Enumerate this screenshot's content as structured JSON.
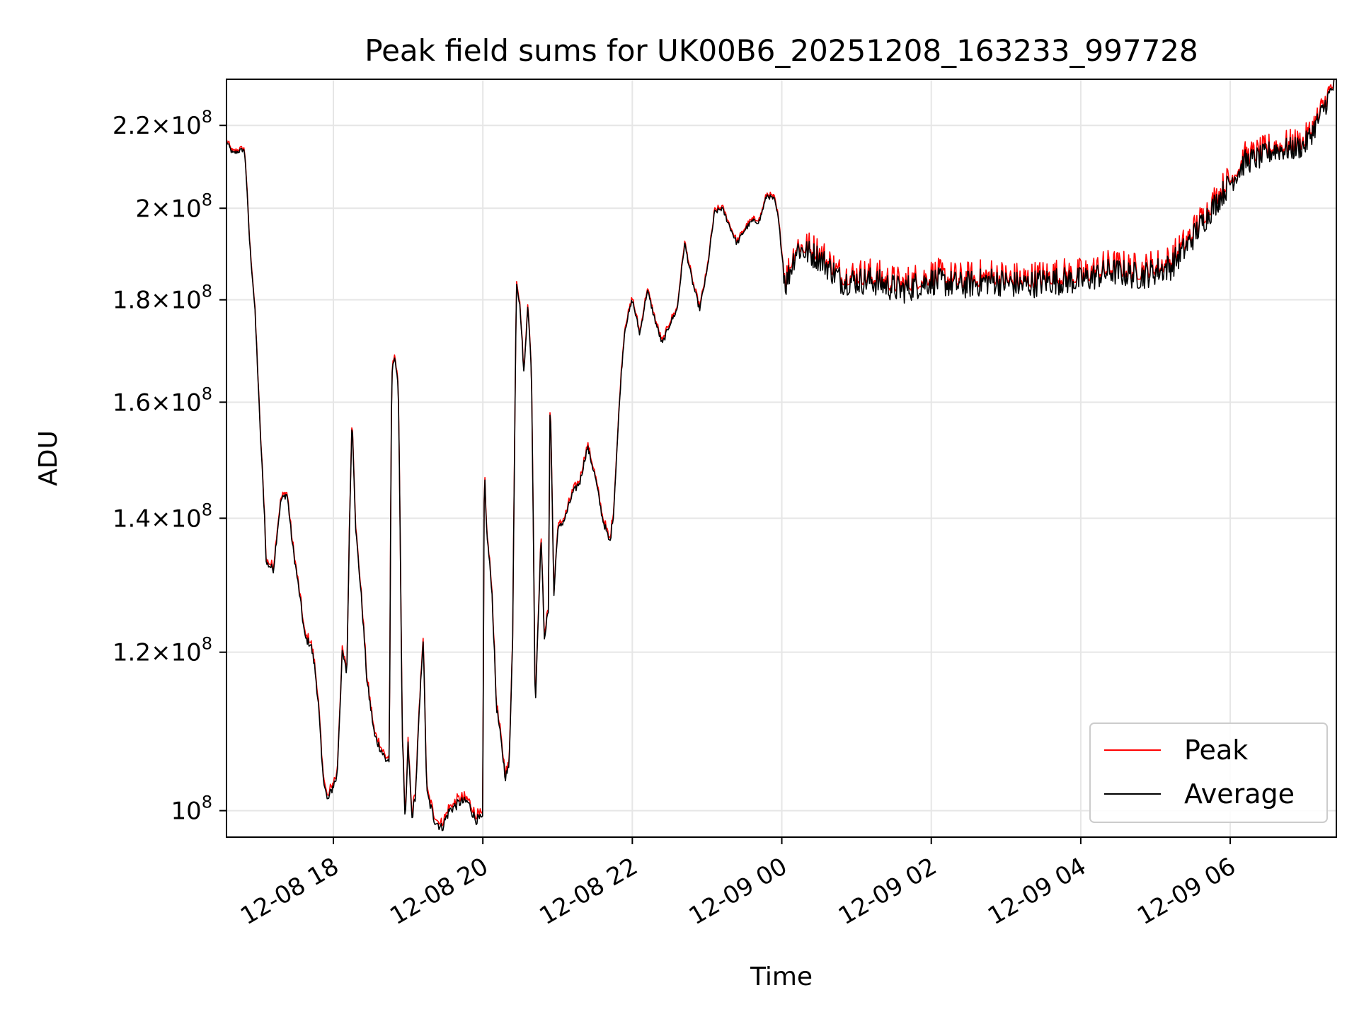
{
  "chart_data": {
    "type": "line",
    "title": "Peak field sums for UK00B6_20251208_163233_997728",
    "xlabel": "Time",
    "ylabel": "ADU",
    "yscale": "log",
    "grid": true,
    "legend_position": "lower-right",
    "x_range_hours": [
      -1.43,
      13.42
    ],
    "ylim": [
      97000000,
      232000000
    ],
    "x_ticks": [
      {
        "hour": 0,
        "label": "12-08 18"
      },
      {
        "hour": 2,
        "label": "12-08 20"
      },
      {
        "hour": 4,
        "label": "12-08 22"
      },
      {
        "hour": 6,
        "label": "12-09 00"
      },
      {
        "hour": 8,
        "label": "12-09 02"
      },
      {
        "hour": 10,
        "label": "12-09 04"
      },
      {
        "hour": 12,
        "label": "12-09 06"
      }
    ],
    "y_ticks": [
      {
        "value": 100000000,
        "mantissa": "",
        "exp": "8"
      },
      {
        "value": 120000000,
        "mantissa": "1.2",
        "exp": "8"
      },
      {
        "value": 140000000,
        "mantissa": "1.4",
        "exp": "8"
      },
      {
        "value": 160000000,
        "mantissa": "1.6",
        "exp": "8"
      },
      {
        "value": 180000000,
        "mantissa": "1.8",
        "exp": "8"
      },
      {
        "value": 200000000,
        "mantissa": "2",
        "exp": "8"
      },
      {
        "value": 220000000,
        "mantissa": "2.2",
        "exp": "8"
      }
    ],
    "series": [
      {
        "name": "Peak",
        "color": "#ff0000",
        "noise_offset": 1.2
      },
      {
        "name": "Average",
        "color": "#000000",
        "noise_offset": 0
      }
    ],
    "average_keypoints": [
      [
        -1.43,
        2.16
      ],
      [
        -1.35,
        2.13
      ],
      [
        -1.2,
        2.14
      ],
      [
        -1.18,
        2.12
      ],
      [
        -1.12,
        1.92
      ],
      [
        -1.05,
        1.78
      ],
      [
        -0.98,
        1.55
      ],
      [
        -0.92,
        1.4
      ],
      [
        -0.9,
        1.33
      ],
      [
        -0.8,
        1.32
      ],
      [
        -0.75,
        1.38
      ],
      [
        -0.7,
        1.43
      ],
      [
        -0.62,
        1.44
      ],
      [
        -0.55,
        1.36
      ],
      [
        -0.45,
        1.28
      ],
      [
        -0.38,
        1.22
      ],
      [
        -0.3,
        1.21
      ],
      [
        -0.25,
        1.18
      ],
      [
        -0.2,
        1.13
      ],
      [
        -0.15,
        1.05
      ],
      [
        -0.08,
        1.01
      ],
      [
        0.0,
        1.03
      ],
      [
        0.05,
        1.04
      ],
      [
        0.12,
        1.2
      ],
      [
        0.18,
        1.17
      ],
      [
        0.22,
        1.41
      ],
      [
        0.25,
        1.57
      ],
      [
        0.3,
        1.38
      ],
      [
        0.38,
        1.27
      ],
      [
        0.45,
        1.16
      ],
      [
        0.55,
        1.09
      ],
      [
        0.7,
        1.06
      ],
      [
        0.75,
        1.06
      ],
      [
        0.78,
        1.65
      ],
      [
        0.82,
        1.69
      ],
      [
        0.87,
        1.62
      ],
      [
        0.92,
        1.1
      ],
      [
        0.96,
        0.98
      ],
      [
        1.0,
        1.08
      ],
      [
        1.05,
        0.99
      ],
      [
        1.1,
        1.02
      ],
      [
        1.2,
        1.22
      ],
      [
        1.25,
        1.02
      ],
      [
        1.35,
        0.99
      ],
      [
        1.45,
        0.98
      ],
      [
        1.55,
        1.0
      ],
      [
        1.7,
        1.01
      ],
      [
        1.8,
        1.01
      ],
      [
        1.9,
        0.99
      ],
      [
        2.0,
        0.99
      ],
      [
        2.02,
        1.49
      ],
      [
        2.05,
        1.38
      ],
      [
        2.12,
        1.29
      ],
      [
        2.18,
        1.13
      ],
      [
        2.3,
        1.04
      ],
      [
        2.35,
        1.05
      ],
      [
        2.4,
        1.22
      ],
      [
        2.45,
        1.84
      ],
      [
        2.5,
        1.78
      ],
      [
        2.55,
        1.65
      ],
      [
        2.6,
        1.79
      ],
      [
        2.65,
        1.66
      ],
      [
        2.7,
        1.12
      ],
      [
        2.78,
        1.37
      ],
      [
        2.82,
        1.22
      ],
      [
        2.88,
        1.26
      ],
      [
        2.9,
        1.62
      ],
      [
        2.95,
        1.28
      ],
      [
        3.0,
        1.38
      ],
      [
        3.1,
        1.4
      ],
      [
        3.2,
        1.44
      ],
      [
        3.3,
        1.46
      ],
      [
        3.4,
        1.52
      ],
      [
        3.5,
        1.47
      ],
      [
        3.6,
        1.4
      ],
      [
        3.7,
        1.36
      ],
      [
        3.75,
        1.41
      ],
      [
        3.8,
        1.53
      ],
      [
        3.85,
        1.65
      ],
      [
        3.9,
        1.74
      ],
      [
        4.0,
        1.8
      ],
      [
        4.1,
        1.73
      ],
      [
        4.2,
        1.82
      ],
      [
        4.3,
        1.76
      ],
      [
        4.4,
        1.71
      ],
      [
        4.5,
        1.75
      ],
      [
        4.6,
        1.78
      ],
      [
        4.7,
        1.92
      ],
      [
        4.8,
        1.84
      ],
      [
        4.9,
        1.78
      ],
      [
        5.0,
        1.86
      ],
      [
        5.1,
        1.99
      ],
      [
        5.2,
        2.0
      ],
      [
        5.3,
        1.96
      ],
      [
        5.4,
        1.92
      ],
      [
        5.5,
        1.95
      ],
      [
        5.6,
        1.97
      ],
      [
        5.7,
        1.97
      ],
      [
        5.8,
        2.03
      ],
      [
        5.9,
        2.02
      ],
      [
        5.95,
        1.98
      ],
      [
        6.0,
        1.9
      ],
      [
        6.05,
        1.83
      ],
      [
        6.2,
        1.91
      ],
      [
        6.5,
        1.89
      ],
      [
        6.8,
        1.84
      ],
      [
        7.2,
        1.84
      ],
      [
        7.6,
        1.82
      ],
      [
        8.0,
        1.84
      ],
      [
        8.4,
        1.83
      ],
      [
        8.8,
        1.84
      ],
      [
        9.2,
        1.83
      ],
      [
        9.6,
        1.84
      ],
      [
        10.0,
        1.84
      ],
      [
        10.4,
        1.86
      ],
      [
        10.8,
        1.85
      ],
      [
        11.2,
        1.87
      ],
      [
        11.4,
        1.91
      ],
      [
        11.6,
        1.96
      ],
      [
        11.8,
        2.01
      ],
      [
        12.0,
        2.06
      ],
      [
        12.2,
        2.11
      ],
      [
        12.4,
        2.12
      ],
      [
        12.6,
        2.14
      ],
      [
        12.8,
        2.14
      ],
      [
        13.0,
        2.15
      ],
      [
        13.2,
        2.22
      ],
      [
        13.42,
        2.32
      ]
    ]
  }
}
